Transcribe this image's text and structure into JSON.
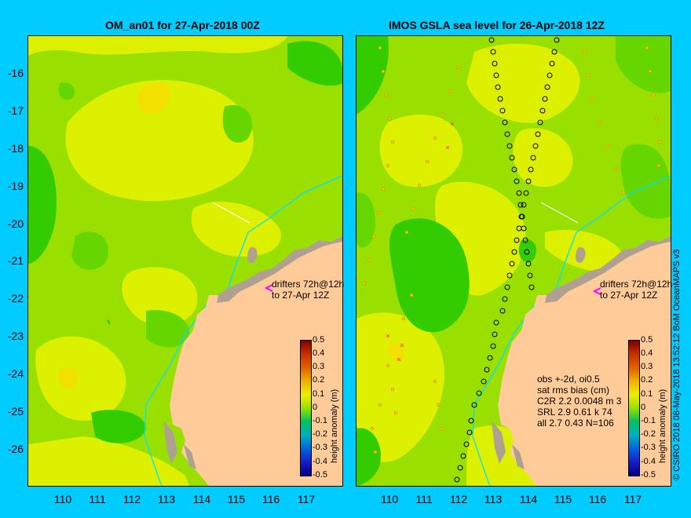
{
  "left_panel": {
    "title": "OM_an01 for 27-Apr-2018 00Z",
    "drifter_note_line1": "drifters 72h@12h",
    "drifter_note_line2": "to 27-Apr 12Z"
  },
  "right_panel": {
    "title": "IMOS GSLA sea level  for 26-Apr-2018 12Z",
    "drifter_note_line1": "drifters 72h@12h",
    "drifter_note_line2": "to 27-Apr 12Z",
    "stats": {
      "line1": "obs +-2d, oi0.5",
      "line2": "sat rms bias (cm)",
      "line3": "C2R   2.2 0.0048 m 3",
      "line4": "SRL   2.9 0.61 k 74",
      "line5": "all   2.7 0.43 N=106"
    }
  },
  "axes": {
    "y_ticks": [
      "-16",
      "-17",
      "-18",
      "-19",
      "-20",
      "-21",
      "-22",
      "-23",
      "-24",
      "-25",
      "-26"
    ],
    "x_ticks": [
      "110",
      "111",
      "112",
      "113",
      "114",
      "115",
      "116",
      "117"
    ]
  },
  "colorbar": {
    "title": "height anomaly (m)",
    "labels": [
      "0.5",
      "0.4",
      "0.3",
      "0.2",
      "0.1",
      "0",
      "-0.1",
      "-0.2",
      "-0.3",
      "-0.4",
      "-0.5"
    ]
  },
  "credit": "© CSIRO 2018   08-May-2018 13:52:12 BoM OceanMAPS v3",
  "colors": {
    "background": "#00ccff",
    "land": "#ffcc99",
    "coast_shelf": "#b0a090",
    "field_mid": "#99e000",
    "field_high": "#ddf000",
    "field_low": "#33cc00",
    "contour_200m": "#00e0ff",
    "drifter_marker": "#ff00ff"
  },
  "icons": {
    "drifter": "magenta-arrowhead",
    "sat_obs_low": "black-circle",
    "sat_obs_small": "yellow-dot"
  }
}
